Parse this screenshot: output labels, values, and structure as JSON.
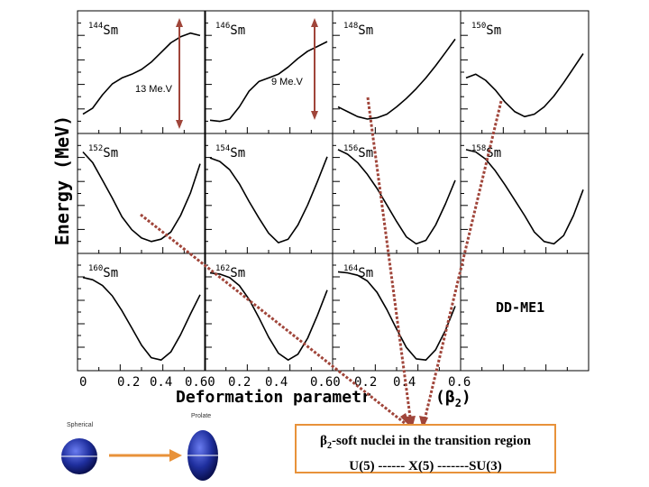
{
  "chart_data": {
    "type": "line",
    "title": "",
    "xlabel": "Deformation parametr",
    "xlabel_symbol": "(β2)",
    "ylabel": "Energy (MeV)",
    "x_ticks": [
      "0",
      "0.2",
      "0.4",
      "0.6"
    ],
    "x_tick_labels_row": [
      "0",
      "0.2",
      "0.4",
      "0.60",
      "0.2",
      "0.4",
      "0.60",
      "0.2",
      "0.4",
      "0.6"
    ],
    "xlim": [
      0,
      0.6
    ],
    "model_label": "DD-ME1",
    "panels": [
      {
        "mass": "144",
        "element": "Sm",
        "x": [
          0,
          0.05,
          0.1,
          0.15,
          0.2,
          0.25,
          0.3,
          0.35,
          0.4,
          0.45,
          0.5,
          0.55,
          0.6
        ],
        "y": [
          1.0,
          1.5,
          2.6,
          3.5,
          4.0,
          4.3,
          4.7,
          5.3,
          6.1,
          6.9,
          7.4,
          7.7,
          7.5
        ]
      },
      {
        "mass": "146",
        "element": "Sm",
        "x": [
          0,
          0.05,
          0.1,
          0.15,
          0.2,
          0.25,
          0.3,
          0.35,
          0.4,
          0.45,
          0.5,
          0.55,
          0.6
        ],
        "y": [
          0.5,
          0.4,
          0.6,
          1.6,
          2.9,
          3.7,
          4.0,
          4.3,
          4.9,
          5.6,
          6.2,
          6.6,
          7.0
        ]
      },
      {
        "mass": "148",
        "element": "Sm",
        "x": [
          0,
          0.05,
          0.1,
          0.15,
          0.2,
          0.25,
          0.3,
          0.35,
          0.4,
          0.45,
          0.5,
          0.55,
          0.6
        ],
        "y": [
          1.6,
          1.2,
          0.8,
          0.6,
          0.7,
          1.0,
          1.6,
          2.3,
          3.1,
          4.0,
          5.0,
          6.1,
          7.2
        ]
      },
      {
        "mass": "150",
        "element": "Sm",
        "x": [
          0,
          0.05,
          0.1,
          0.15,
          0.2,
          0.25,
          0.3,
          0.35,
          0.4,
          0.45,
          0.5,
          0.55,
          0.6
        ],
        "y": [
          4.0,
          4.3,
          3.8,
          3.0,
          2.0,
          1.2,
          0.8,
          1.0,
          1.6,
          2.5,
          3.6,
          4.8,
          6.0
        ]
      },
      {
        "mass": "152",
        "element": "Sm",
        "x": [
          0,
          0.05,
          0.1,
          0.15,
          0.2,
          0.25,
          0.3,
          0.35,
          0.4,
          0.45,
          0.5,
          0.55,
          0.6
        ],
        "y": [
          8.0,
          7.1,
          5.6,
          4.1,
          2.5,
          1.4,
          0.7,
          0.4,
          0.6,
          1.2,
          2.6,
          4.5,
          7.0
        ]
      },
      {
        "mass": "154",
        "element": "Sm",
        "x": [
          0,
          0.05,
          0.1,
          0.15,
          0.2,
          0.25,
          0.3,
          0.35,
          0.4,
          0.45,
          0.5,
          0.55,
          0.6
        ],
        "y": [
          7.5,
          7.2,
          6.5,
          5.3,
          3.8,
          2.4,
          1.1,
          0.3,
          0.6,
          1.8,
          3.5,
          5.5,
          7.6
        ]
      },
      {
        "mass": "156",
        "element": "Sm",
        "x": [
          0,
          0.05,
          0.1,
          0.15,
          0.2,
          0.25,
          0.3,
          0.35,
          0.4,
          0.45,
          0.5,
          0.55,
          0.6
        ],
        "y": [
          8.2,
          7.8,
          7.1,
          6.1,
          4.9,
          3.5,
          2.1,
          0.8,
          0.2,
          0.5,
          1.8,
          3.6,
          5.6
        ]
      },
      {
        "mass": "158",
        "element": "Sm",
        "x": [
          0,
          0.05,
          0.1,
          0.15,
          0.2,
          0.25,
          0.3,
          0.35,
          0.4,
          0.45,
          0.5,
          0.55,
          0.6
        ],
        "y": [
          8.2,
          8.0,
          7.4,
          6.4,
          5.2,
          3.9,
          2.6,
          1.2,
          0.4,
          0.2,
          0.9,
          2.6,
          4.8
        ]
      },
      {
        "mass": "160",
        "element": "Sm",
        "x": [
          0,
          0.05,
          0.1,
          0.15,
          0.2,
          0.25,
          0.3,
          0.35,
          0.4,
          0.45,
          0.5,
          0.55,
          0.6
        ],
        "y": [
          7.5,
          7.3,
          6.8,
          5.9,
          4.6,
          3.1,
          1.6,
          0.5,
          0.3,
          1.0,
          2.5,
          4.3,
          6.0
        ]
      },
      {
        "mass": "162",
        "element": "Sm",
        "x": [
          0,
          0.05,
          0.1,
          0.15,
          0.2,
          0.25,
          0.3,
          0.35,
          0.4,
          0.45,
          0.5,
          0.55,
          0.6
        ],
        "y": [
          7.9,
          7.8,
          7.5,
          6.8,
          5.6,
          4.0,
          2.3,
          0.9,
          0.3,
          0.8,
          2.2,
          4.2,
          6.4
        ]
      },
      {
        "mass": "164",
        "element": "Sm",
        "x": [
          0,
          0.05,
          0.1,
          0.15,
          0.2,
          0.25,
          0.3,
          0.35,
          0.4,
          0.45,
          0.5,
          0.55,
          0.6
        ],
        "y": [
          8.0,
          7.9,
          7.7,
          7.2,
          6.2,
          4.7,
          3.0,
          1.4,
          0.4,
          0.3,
          1.2,
          2.9,
          5.0
        ]
      }
    ]
  },
  "annotations": {
    "energy_gap_1": "13 Me.V",
    "energy_gap_2": "9 Me.V",
    "arrow_color": "#a0453a",
    "note_line1_prefix": "β",
    "note_line1_sub": "2",
    "note_line1_rest": "-soft nuclei in the transition region",
    "note_line2": "U(5) ------ X(5) -------SU(3)",
    "note_border_color": "#e8923a"
  },
  "shapes": {
    "spherical_label": "Spherical",
    "prolate_label": "Prolate",
    "arrow_color": "#e8923a",
    "body_color": "#1f2f9e"
  }
}
